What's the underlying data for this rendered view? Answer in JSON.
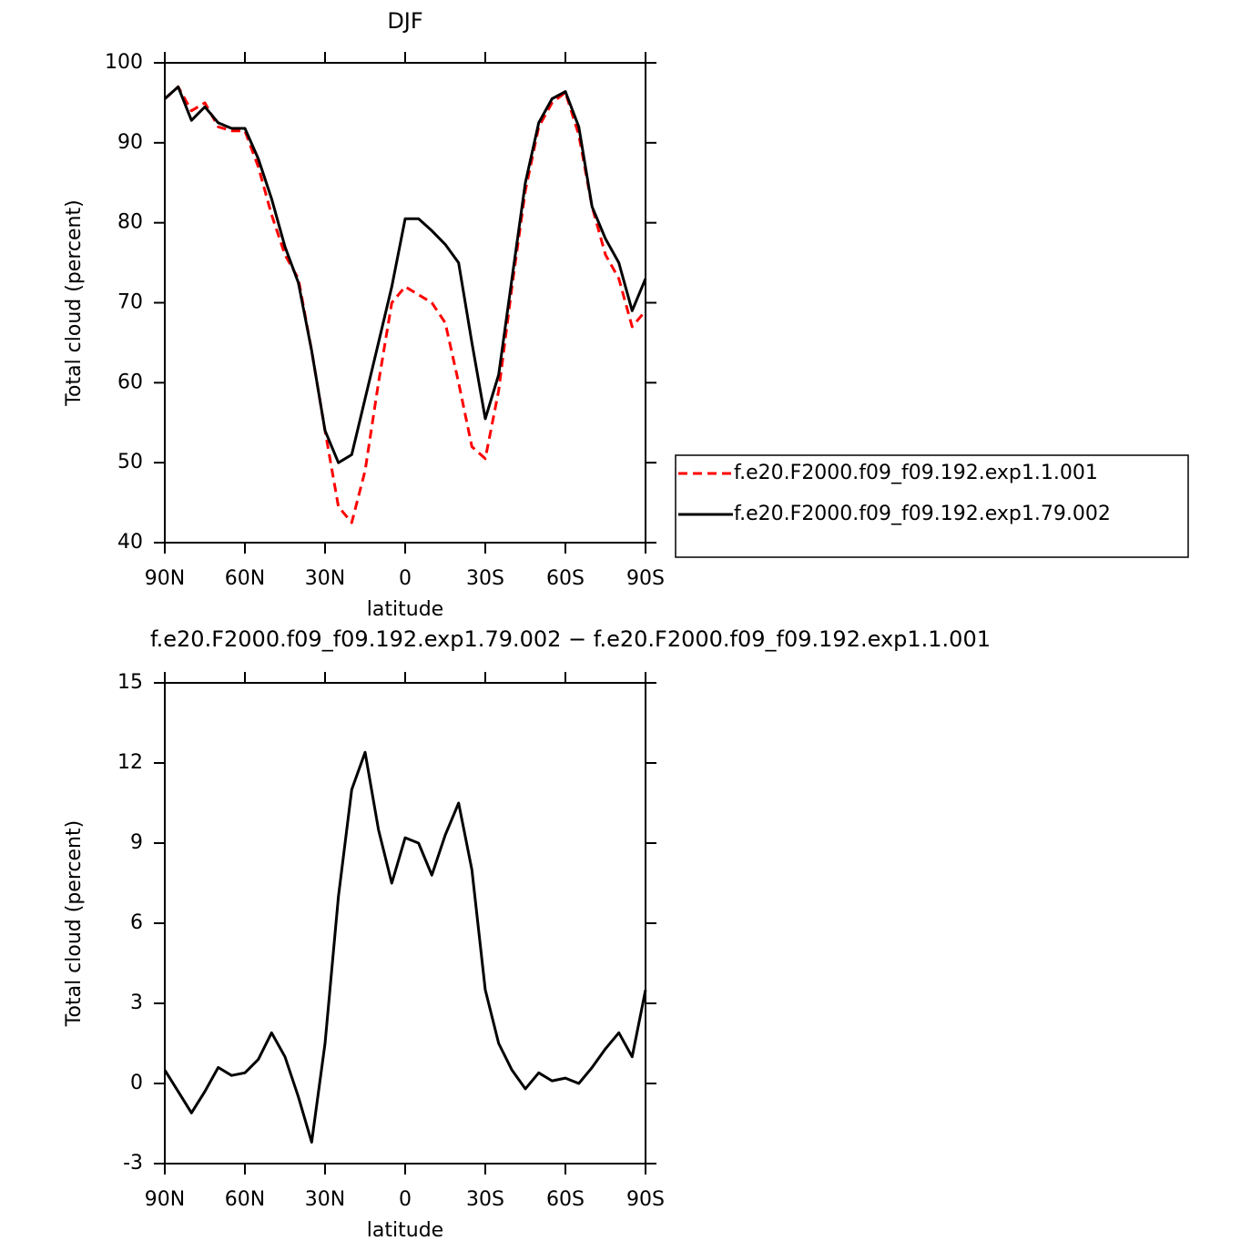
{
  "chart_data": [
    {
      "type": "line",
      "title": "DJF",
      "xlabel": "latitude",
      "ylabel": "Total cloud (percent)",
      "x": [
        90,
        85,
        80,
        75,
        70,
        65,
        60,
        55,
        50,
        45,
        40,
        35,
        30,
        25,
        20,
        15,
        10,
        5,
        0,
        -5,
        -10,
        -15,
        -20,
        -25,
        -30,
        -35,
        -40,
        -45,
        -50,
        -55,
        -60,
        -65,
        -70,
        -75,
        -80,
        -85,
        -90
      ],
      "xlim": [
        90,
        -90
      ],
      "xticks": [
        {
          "value": 90,
          "label": "90N"
        },
        {
          "value": 60,
          "label": "60N"
        },
        {
          "value": 30,
          "label": "30N"
        },
        0,
        {
          "value": -30,
          "label": "30S"
        },
        {
          "value": -60,
          "label": "60S"
        },
        {
          "value": -90,
          "label": "90S"
        }
      ],
      "ylim": [
        40,
        100
      ],
      "yticks": [
        40,
        50,
        60,
        70,
        80,
        90,
        100
      ],
      "legend": "right",
      "series": [
        {
          "name": "f.e20.F2000.f09_f09.192.exp1.1.001",
          "color": "#ff0000",
          "dash": true,
          "values": [
            95.5,
            97,
            94,
            95,
            92,
            91.5,
            91.5,
            87,
            81,
            76,
            73,
            64,
            54,
            44.5,
            42.5,
            49,
            60,
            70,
            72,
            71,
            70,
            67.5,
            60,
            52,
            50.5,
            59,
            72,
            84,
            92,
            95,
            96.3,
            91,
            82,
            76,
            73,
            67,
            69
          ]
        },
        {
          "name": "f.e20.F2000.f09_f09.192.exp1.79.002",
          "color": "#000000",
          "dash": false,
          "values": [
            95.5,
            97,
            92.8,
            94.5,
            92.5,
            91.8,
            91.8,
            88,
            83,
            77,
            72.5,
            64,
            54,
            50,
            51,
            58,
            65,
            72,
            80.5,
            80.5,
            79,
            77.3,
            75,
            65,
            55.5,
            61,
            73,
            85,
            92.5,
            95.5,
            96.4,
            92,
            82,
            78,
            75,
            69,
            73
          ]
        }
      ]
    },
    {
      "type": "line",
      "title": "f.e20.F2000.f09_f09.192.exp1.79.002 − f.e20.F2000.f09_f09.192.exp1.1.001",
      "xlabel": "latitude",
      "ylabel": "Total cloud (percent)",
      "x": [
        90,
        85,
        80,
        75,
        70,
        65,
        60,
        55,
        50,
        45,
        40,
        35,
        30,
        25,
        20,
        15,
        10,
        5,
        0,
        -5,
        -10,
        -15,
        -20,
        -25,
        -30,
        -35,
        -40,
        -45,
        -50,
        -55,
        -60,
        -65,
        -70,
        -75,
        -80,
        -85,
        -90
      ],
      "xlim": [
        90,
        -90
      ],
      "xticks": [
        {
          "value": 90,
          "label": "90N"
        },
        {
          "value": 60,
          "label": "60N"
        },
        {
          "value": 30,
          "label": "30N"
        },
        0,
        {
          "value": -30,
          "label": "30S"
        },
        {
          "value": -60,
          "label": "60S"
        },
        {
          "value": -90,
          "label": "90S"
        }
      ],
      "ylim": [
        -3,
        15
      ],
      "yticks": [
        -3,
        0,
        3,
        6,
        9,
        12,
        15
      ],
      "series": [
        {
          "color": "#000000",
          "dash": false,
          "values": [
            0.5,
            -0.3,
            -1.1,
            -0.3,
            0.6,
            0.3,
            0.4,
            0.9,
            1.9,
            1.0,
            -0.5,
            -2.2,
            1.5,
            7,
            11,
            12.4,
            9.5,
            7.5,
            9.2,
            9,
            7.8,
            9.3,
            10.5,
            8,
            3.5,
            1.5,
            0.5,
            -0.2,
            0.4,
            0.1,
            0.2,
            0,
            0.6,
            1.3,
            1.9,
            1.0,
            3.5
          ]
        }
      ]
    }
  ]
}
